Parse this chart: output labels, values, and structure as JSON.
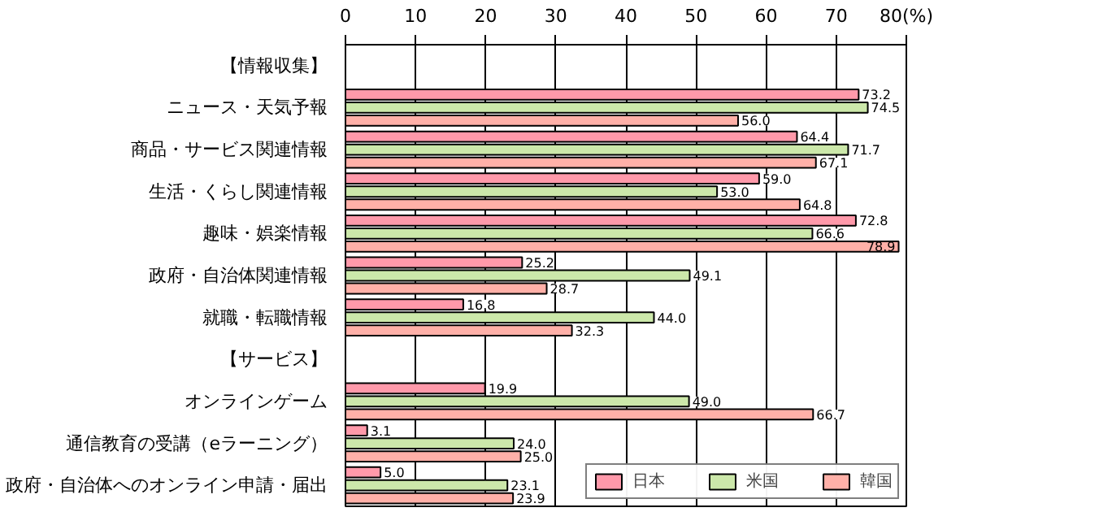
{
  "chart_data": {
    "type": "bar",
    "orientation": "horizontal",
    "categories": [
      "【情報収集】",
      "ニュース・天気予報",
      "商品・サービス関連情報",
      "生活・くらし関連情報",
      "趣味・娯楽情報",
      "政府・自治体関連情報",
      "就職・転職情報",
      "【サービス】",
      "オンラインゲーム",
      "通信教育の受講（eラーニング）",
      "政府・自治体へのオンライン申請・届出"
    ],
    "series": [
      {
        "name": "日本",
        "color": "#ff99aa",
        "values": [
          null,
          73.2,
          64.4,
          59.0,
          72.8,
          25.2,
          16.8,
          null,
          19.9,
          3.1,
          5.0
        ],
        "value_labels": [
          null,
          "73.2",
          "64.4",
          "59.0",
          "72.8",
          "25.2",
          "16.8",
          null,
          "19.9",
          "3.1",
          "5.0"
        ]
      },
      {
        "name": "米国",
        "color": "#cce8aa",
        "values": [
          null,
          74.5,
          71.7,
          53.0,
          66.6,
          49.1,
          44.0,
          null,
          49.0,
          24.0,
          23.1
        ],
        "value_labels": [
          null,
          "74.5",
          "71.7",
          "53.0",
          "66.6",
          "49.1",
          "44.0",
          null,
          "49.0",
          "24.0",
          "23.1"
        ]
      },
      {
        "name": "韓国",
        "color": "#ffb0a8",
        "values": [
          null,
          56.0,
          67.1,
          64.8,
          78.9,
          28.7,
          32.3,
          null,
          66.7,
          25.0,
          23.9
        ],
        "value_labels": [
          null,
          "56.0",
          "67.1",
          "64.8",
          "78.9",
          "28.7",
          "32.3",
          null,
          "66.7",
          "25.0",
          "23.9"
        ]
      }
    ],
    "xlim": [
      0,
      80
    ],
    "xticks": [
      0,
      10,
      20,
      30,
      40,
      50,
      60,
      70,
      {
        "value": 80,
        "label": "80(%)"
      }
    ],
    "grid": "x",
    "legend": "bottom"
  }
}
